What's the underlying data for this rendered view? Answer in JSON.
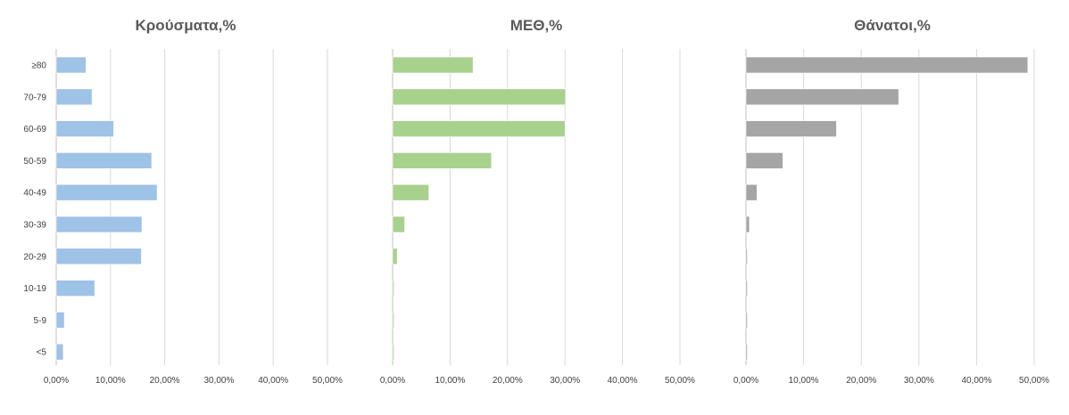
{
  "chart_data": [
    {
      "type": "bar",
      "orientation": "horizontal",
      "title": "Κρούσματα,%",
      "categories": [
        "≥80",
        "70-79",
        "60-69",
        "50-59",
        "40-49",
        "30-39",
        "20-29",
        "10-19",
        "5-9",
        "<5"
      ],
      "values": [
        5.5,
        6.6,
        10.6,
        17.6,
        18.6,
        15.8,
        15.7,
        7.1,
        1.5,
        1.3
      ],
      "xlim": [
        0,
        50
      ],
      "x_ticks": [
        "0,00%",
        "10,00%",
        "20,00%",
        "30,00%",
        "40,00%",
        "50,00%"
      ],
      "grid": true,
      "color": "#9fc2e7"
    },
    {
      "type": "bar",
      "orientation": "horizontal",
      "title": "ΜΕΘ,%",
      "categories": [
        "≥80",
        "70-79",
        "60-69",
        "50-59",
        "40-49",
        "30-39",
        "20-29",
        "10-19",
        "5-9",
        "<5"
      ],
      "values": [
        14.0,
        30.1,
        30.0,
        17.2,
        6.3,
        2.1,
        0.8,
        0.2,
        0.0,
        0.1
      ],
      "xlim": [
        0,
        50
      ],
      "x_ticks": [
        "0,00%",
        "10,00%",
        "20,00%",
        "30,00%",
        "40,00%",
        "50,00%"
      ],
      "grid": true,
      "color": "#a9d18e"
    },
    {
      "type": "bar",
      "orientation": "horizontal",
      "title": "Θάνατοι,%",
      "categories": [
        "≥80",
        "70-79",
        "60-69",
        "50-59",
        "40-49",
        "30-39",
        "20-29",
        "10-19",
        "5-9",
        "<5"
      ],
      "values": [
        48.9,
        26.5,
        15.7,
        6.4,
        1.9,
        0.6,
        0.2,
        0.1,
        0.0,
        0.0
      ],
      "xlim": [
        0,
        50
      ],
      "x_ticks": [
        "0,00%",
        "10,00%",
        "20,00%",
        "30,00%",
        "40,00%",
        "50,00%"
      ],
      "grid": true,
      "color": "#a5a5a5"
    }
  ]
}
